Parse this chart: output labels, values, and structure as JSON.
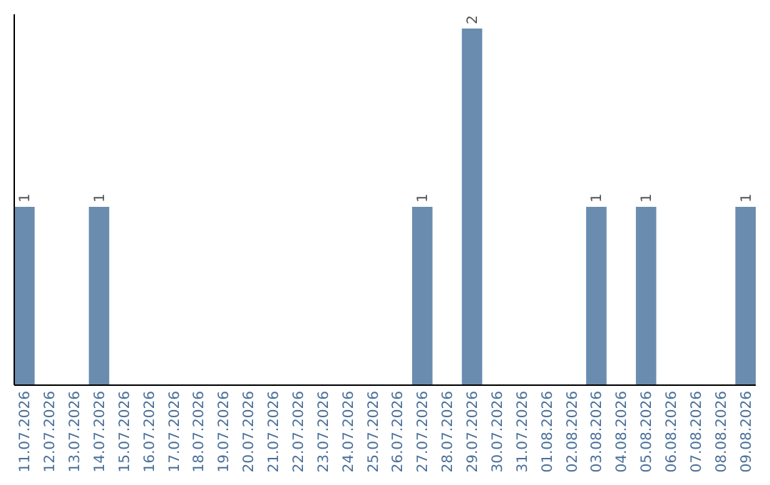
{
  "chart_data": {
    "type": "bar",
    "categories": [
      "11.07.2026",
      "12.07.2026",
      "13.07.2026",
      "14.07.2026",
      "15.07.2026",
      "16.07.2026",
      "17.07.2026",
      "18.07.2026",
      "19.07.2026",
      "20.07.2026",
      "21.07.2026",
      "22.07.2026",
      "23.07.2026",
      "24.07.2026",
      "25.07.2026",
      "26.07.2026",
      "27.07.2026",
      "28.07.2026",
      "29.07.2026",
      "30.07.2026",
      "31.07.2026",
      "01.08.2026",
      "02.08.2026",
      "03.08.2026",
      "04.08.2026",
      "05.08.2026",
      "06.08.2026",
      "07.08.2026",
      "08.08.2026",
      "09.08.2026"
    ],
    "values": [
      1,
      0,
      0,
      1,
      0,
      0,
      0,
      0,
      0,
      0,
      0,
      0,
      0,
      0,
      0,
      0,
      1,
      0,
      2,
      0,
      0,
      0,
      0,
      1,
      0,
      1,
      0,
      0,
      0,
      1
    ],
    "value_labels": [
      "1",
      null,
      null,
      "1",
      null,
      null,
      null,
      null,
      null,
      null,
      null,
      null,
      null,
      null,
      null,
      null,
      "1",
      null,
      "2",
      null,
      null,
      null,
      null,
      "1",
      null,
      "1",
      null,
      null,
      null,
      "1"
    ],
    "color": "#6a8caf"
  }
}
